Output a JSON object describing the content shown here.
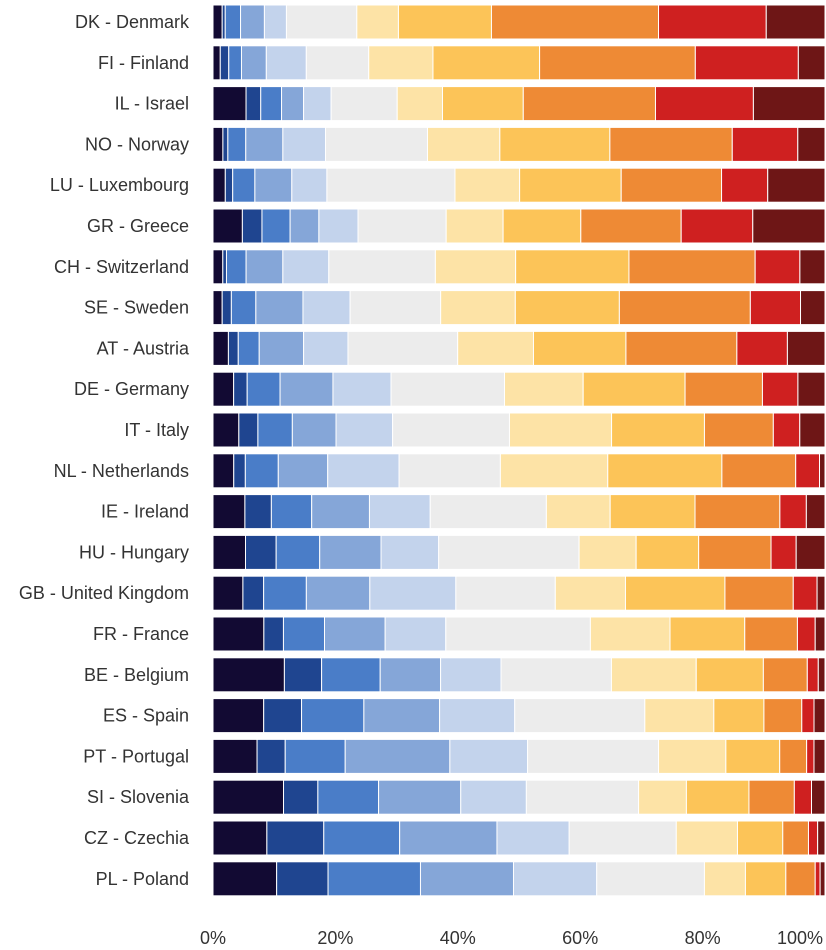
{
  "chart_data": {
    "type": "bar",
    "orientation": "horizontal",
    "stacked": true,
    "normalized": true,
    "categories": [
      "DK - Denmark",
      "FI - Finland",
      "IL - Israel",
      "NO - Norway",
      "LU - Luxembourg",
      "GR - Greece",
      "CH - Switzerland",
      "SE - Sweden",
      "AT - Austria",
      "DE - Germany",
      "IT - Italy",
      "NL - Netherlands",
      "IE - Ireland",
      "HU - Hungary",
      "GB - United Kingdom",
      "FR - France",
      "BE - Belgium",
      "ES - Spain",
      "PT - Portugal",
      "SI - Slovenia",
      "CZ - Czechia",
      "PL - Poland"
    ],
    "segment_colors": [
      "#120a33",
      "#1f4590",
      "#4a7dc8",
      "#85a6d8",
      "#c3d3ec",
      "#ececec",
      "#fde3a6",
      "#fcc458",
      "#ee8a35",
      "#cf2020",
      "#6e1616"
    ],
    "values": [
      [
        1.5,
        0.5,
        2.5,
        3.9,
        3.6,
        11.5,
        6.8,
        15.2,
        27.3,
        17.6,
        9.6
      ],
      [
        1.2,
        1.4,
        2.1,
        4.1,
        6.6,
        10.3,
        10.6,
        17.6,
        25.7,
        17.0,
        4.4
      ],
      [
        5.4,
        2.4,
        3.4,
        3.6,
        4.5,
        10.8,
        7.4,
        13.2,
        21.6,
        16.0,
        11.7
      ],
      [
        1.6,
        0.8,
        2.9,
        6.0,
        6.9,
        16.5,
        11.7,
        17.8,
        19.8,
        10.6,
        4.4
      ],
      [
        2.0,
        1.2,
        3.6,
        6.0,
        5.7,
        20.8,
        10.5,
        16.5,
        16.3,
        7.5,
        9.3
      ],
      [
        4.8,
        3.2,
        4.6,
        4.7,
        6.4,
        14.4,
        9.3,
        12.7,
        16.4,
        11.7,
        11.8
      ],
      [
        1.6,
        0.6,
        3.2,
        6.0,
        7.5,
        17.4,
        13.1,
        18.5,
        20.6,
        7.3,
        4.1
      ],
      [
        1.5,
        1.5,
        4.0,
        7.7,
        7.7,
        14.8,
        12.2,
        17.0,
        21.4,
        8.2,
        4.0
      ],
      [
        2.5,
        1.6,
        3.4,
        7.2,
        7.2,
        17.8,
        12.3,
        15.0,
        18.0,
        8.2,
        6.1
      ],
      [
        3.2,
        2.1,
        5.1,
        8.2,
        9.0,
        17.6,
        12.2,
        15.8,
        12.0,
        5.5,
        4.2
      ],
      [
        4.2,
        3.1,
        5.6,
        7.1,
        9.2,
        19.0,
        16.6,
        15.1,
        11.2,
        4.3,
        4.1
      ],
      [
        3.4,
        1.9,
        5.4,
        8.1,
        11.7,
        16.6,
        17.6,
        18.7,
        12.1,
        3.9,
        0.9
      ],
      [
        5.3,
        4.4,
        6.7,
        9.6,
        10.1,
        19.3,
        10.6,
        14.1,
        14.1,
        4.4,
        3.1
      ],
      [
        5.3,
        5.0,
        7.1,
        10.0,
        9.4,
        22.9,
        9.3,
        10.2,
        11.8,
        4.1,
        4.7
      ],
      [
        4.9,
        3.4,
        7.0,
        10.4,
        14.1,
        16.3,
        11.5,
        16.3,
        11.2,
        3.9,
        1.3
      ],
      [
        8.3,
        3.2,
        6.7,
        9.9,
        9.9,
        23.6,
        13.0,
        12.2,
        8.6,
        2.9,
        1.6
      ],
      [
        11.7,
        6.1,
        9.6,
        9.9,
        9.9,
        18.1,
        13.9,
        11.0,
        7.2,
        1.8,
        1.1
      ],
      [
        8.3,
        6.2,
        10.2,
        12.4,
        12.3,
        21.3,
        11.3,
        8.2,
        6.2,
        2.0,
        1.8
      ],
      [
        7.2,
        4.6,
        9.8,
        17.1,
        12.7,
        21.4,
        11.0,
        8.8,
        4.4,
        1.2,
        1.8
      ],
      [
        11.5,
        5.6,
        9.9,
        13.4,
        10.7,
        18.3,
        7.8,
        10.2,
        7.4,
        2.8,
        2.2
      ],
      [
        8.8,
        9.3,
        12.4,
        15.9,
        11.8,
        17.5,
        10.0,
        7.4,
        4.2,
        1.5,
        1.2
      ],
      [
        10.4,
        8.4,
        15.1,
        15.2,
        13.6,
        17.6,
        6.7,
        6.6,
        4.8,
        0.8,
        0.8
      ]
    ],
    "xlim": [
      0,
      100
    ],
    "xticks": [
      0,
      20,
      40,
      60,
      80,
      100
    ],
    "xtick_labels": [
      "0%",
      "20%",
      "40%",
      "60%",
      "80%",
      "100%"
    ],
    "title": "",
    "xlabel": "",
    "ylabel": "",
    "legend": false,
    "grid": false
  }
}
